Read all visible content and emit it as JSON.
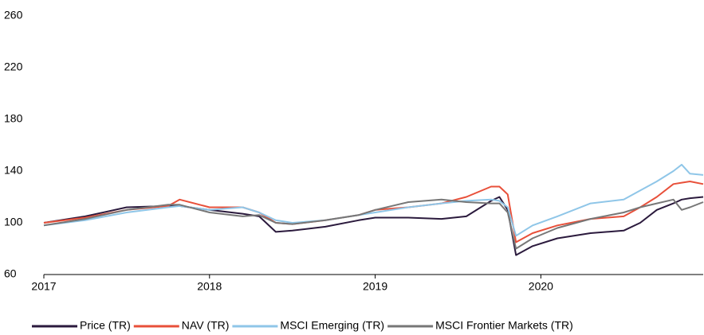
{
  "chart_data": {
    "type": "line",
    "x": [
      2017,
      2017.25,
      2017.5,
      2017.75,
      2017.82,
      2018,
      2018.2,
      2018.3,
      2018.4,
      2018.5,
      2018.7,
      2018.9,
      2019,
      2019.2,
      2019.4,
      2019.55,
      2019.7,
      2019.75,
      2019.8,
      2019.85,
      2019.95,
      2020.1,
      2020.3,
      2020.5,
      2020.6,
      2020.7,
      2020.8,
      2020.85,
      2020.9,
      2020.98
    ],
    "series": [
      {
        "name": "Price (TR)",
        "color": "#2b1a3d",
        "values": [
          100,
          105,
          112,
          113,
          113,
          110,
          107,
          105,
          93,
          94,
          97,
          102,
          104,
          104,
          103,
          105,
          117,
          120,
          110,
          75,
          82,
          88,
          92,
          94,
          100,
          110,
          115,
          118,
          119,
          120
        ]
      },
      {
        "name": "NAV (TR)",
        "color": "#e8503a",
        "values": [
          100,
          104,
          110,
          113,
          118,
          112,
          112,
          108,
          100,
          99,
          102,
          106,
          110,
          112,
          115,
          120,
          128,
          128,
          122,
          85,
          92,
          98,
          103,
          105,
          112,
          120,
          130,
          131,
          132,
          130
        ]
      },
      {
        "name": "MSCI Emerging (TR)",
        "color": "#8fc6e8",
        "values": [
          98,
          102,
          108,
          112,
          113,
          110,
          112,
          108,
          102,
          100,
          102,
          106,
          108,
          112,
          115,
          117,
          118,
          117,
          112,
          90,
          98,
          105,
          115,
          118,
          125,
          132,
          140,
          145,
          138,
          137
        ]
      },
      {
        "name": "MSCI Frontier Markets (TR)",
        "color": "#777777",
        "values": [
          98,
          103,
          110,
          114,
          114,
          108,
          105,
          106,
          100,
          99,
          102,
          106,
          110,
          116,
          118,
          116,
          115,
          115,
          108,
          80,
          88,
          96,
          103,
          108,
          112,
          115,
          118,
          110,
          112,
          116
        ]
      }
    ],
    "xlim": [
      2017,
      2020.98
    ],
    "xticks": [
      2017,
      2018,
      2019,
      2020
    ],
    "ylim": [
      60,
      260
    ],
    "yticks": [
      60,
      100,
      140,
      180,
      220,
      260
    ],
    "grid": false,
    "legend": "bottom"
  }
}
